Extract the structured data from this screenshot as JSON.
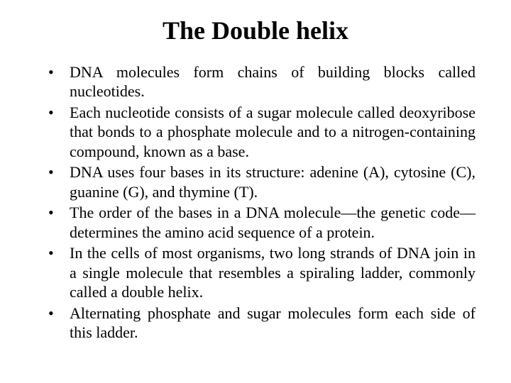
{
  "slide": {
    "title": "The Double helix",
    "title_fontsize": 36,
    "title_weight": "bold",
    "body_fontsize": 22,
    "text_color": "#000000",
    "background_color": "#ffffff",
    "font_family": "Times New Roman",
    "text_align_body": "justify",
    "bullets": [
      "DNA molecules form chains of building blocks called nucleotides.",
      "Each nucleotide consists of a sugar molecule called deoxyribose that bonds to a phosphate molecule and to a nitrogen-containing compound, known as a base.",
      "DNA uses four bases in its structure: adenine (A), cytosine (C), guanine (G), and thymine (T).",
      "The order of the bases in a DNA molecule—the genetic code—determines the amino acid sequence of a protein.",
      "In the cells of most organisms, two long strands of DNA join in a single molecule that resembles a spiraling ladder, commonly called a double helix.",
      "Alternating phosphate and sugar molecules form each side of this ladder."
    ]
  }
}
